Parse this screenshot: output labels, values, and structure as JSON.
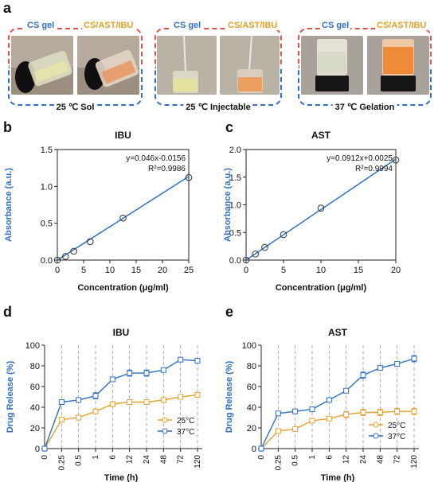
{
  "panels": {
    "a": "a",
    "b": "b",
    "c": "c",
    "d": "d",
    "e": "e"
  },
  "photo_groups": [
    {
      "left_label": "CS gel",
      "right_label": "CS/AST/IBU",
      "condition": "25 ℃ Sol"
    },
    {
      "left_label": "CS gel",
      "right_label": "CS/AST/IBU",
      "condition": "25 ℃ Injectable"
    },
    {
      "left_label": "CS gel",
      "right_label": "CS/AST/IBU",
      "condition": "37 ℃ Gelation"
    }
  ],
  "colors": {
    "line_blue": "#2f6fc4",
    "orange": "#e5a02b",
    "red_dash": "#d9534f",
    "gray_dash": "#9a9a9a"
  },
  "chart_data": [
    {
      "type": "scatter",
      "title": "IBU",
      "xlabel": "Concentration (μg/ml)",
      "ylabel": "Absorbance (a.u.)",
      "xlim": [
        0,
        25
      ],
      "ylim": [
        0,
        1.5
      ],
      "xticks": [
        "0",
        "5",
        "10",
        "15",
        "20",
        "25"
      ],
      "yticks": [
        "0.0",
        "0.5",
        "1.0",
        "1.5"
      ],
      "x": [
        0,
        1.5625,
        3.125,
        6.25,
        12.5,
        25
      ],
      "y": [
        0.0,
        0.05,
        0.12,
        0.25,
        0.57,
        1.12
      ],
      "fit": {
        "slope": 0.046,
        "intercept": -0.0156
      },
      "equation": "y=0.046x-0.0156",
      "r2": "R²=0.9986"
    },
    {
      "type": "scatter",
      "title": "AST",
      "xlabel": "Concentration (μg/ml)",
      "ylabel": "Absorbance (a.u.)",
      "xlim": [
        0,
        20
      ],
      "ylim": [
        0,
        2.0
      ],
      "xticks": [
        "0",
        "5",
        "10",
        "15",
        "20"
      ],
      "yticks": [
        "0.0",
        "0.5",
        "1.0",
        "1.5",
        "2.0"
      ],
      "x": [
        0,
        1.25,
        2.5,
        5,
        10,
        20
      ],
      "y": [
        0.0,
        0.11,
        0.23,
        0.46,
        0.94,
        1.81
      ],
      "fit": {
        "slope": 0.0912,
        "intercept": 0.0025
      },
      "equation": "y=0.0912x+0.0025",
      "r2": "R²=0.9994"
    },
    {
      "type": "line",
      "title": "IBU",
      "xlabel": "Time (h)",
      "ylabel": "Drug Release (%)",
      "ylim": [
        0,
        100
      ],
      "yticks": [
        "0",
        "20",
        "40",
        "60",
        "80",
        "100"
      ],
      "x_labels": [
        "0",
        "0.25",
        "0.5",
        "1",
        "6",
        "12",
        "24",
        "48",
        "72",
        "120"
      ],
      "series": [
        {
          "name": "25°C",
          "color": "#e5a02b",
          "values": [
            0,
            28,
            30,
            36,
            43,
            45,
            45,
            47,
            50,
            52
          ],
          "errors": [
            1,
            2,
            2,
            2,
            2,
            2,
            2,
            2,
            2,
            2
          ]
        },
        {
          "name": "37°C",
          "color": "#2f6fc4",
          "values": [
            0,
            45,
            47,
            51,
            67,
            73,
            73,
            76,
            86,
            85
          ],
          "errors": [
            1,
            2,
            2,
            3,
            2,
            3,
            3,
            2,
            2,
            2
          ]
        }
      ]
    },
    {
      "type": "line",
      "title": "AST",
      "xlabel": "Time (h)",
      "ylabel": "Drug Release (%)",
      "ylim": [
        0,
        100
      ],
      "yticks": [
        "0",
        "20",
        "40",
        "60",
        "80",
        "100"
      ],
      "x_labels": [
        "0",
        "0.25",
        "0.5",
        "1",
        "6",
        "12",
        "24",
        "48",
        "72",
        "120"
      ],
      "series": [
        {
          "name": "25°C",
          "color": "#e5a02b",
          "values": [
            0,
            17,
            19,
            27,
            29,
            33,
            35,
            35,
            36,
            36
          ],
          "errors": [
            1,
            2,
            2,
            2,
            2,
            3,
            3,
            3,
            3,
            3
          ]
        },
        {
          "name": "37°C",
          "color": "#2f6fc4",
          "values": [
            0,
            34,
            36,
            38,
            47,
            56,
            71,
            78,
            82,
            87
          ],
          "errors": [
            1,
            2,
            2,
            2,
            2,
            2,
            3,
            2,
            2,
            3
          ]
        }
      ]
    }
  ]
}
